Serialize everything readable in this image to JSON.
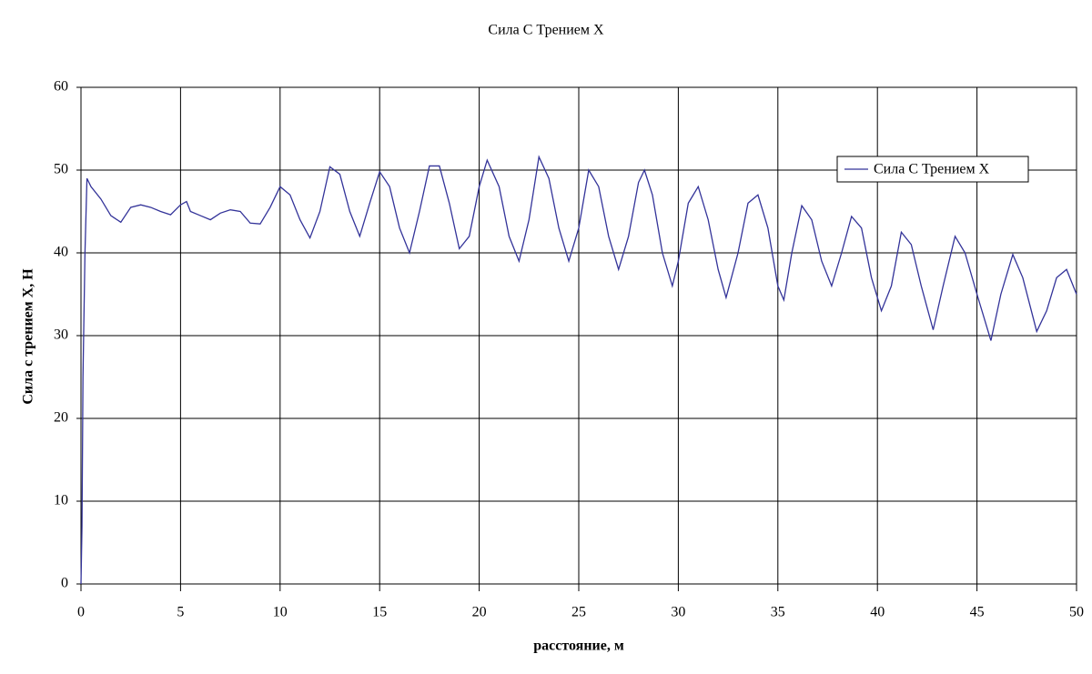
{
  "chart_data": {
    "type": "line",
    "title": "Сила С Трением X",
    "xlabel": "расстояние, м",
    "ylabel": "Сила с трением X, Н",
    "x": [
      0,
      0.05,
      0.1,
      0.2,
      0.3,
      0.5,
      1,
      1.5,
      2,
      2.5,
      3,
      3.5,
      4,
      4.5,
      5,
      5.3,
      5.5,
      6,
      6.5,
      7,
      7.5,
      8,
      8.5,
      9,
      9.5,
      10,
      10.5,
      11,
      11.5,
      12,
      12.5,
      13,
      13.5,
      14,
      14.5,
      15,
      15.5,
      16,
      16.5,
      17,
      17.5,
      18,
      18.5,
      19,
      19.5,
      20,
      20.4,
      21,
      21.5,
      22,
      22.5,
      23,
      23.5,
      24,
      24.5,
      25,
      25.5,
      26,
      26.5,
      27,
      27.5,
      28,
      28.3,
      28.7,
      29.2,
      29.7,
      30,
      30.5,
      31,
      31.5,
      32,
      32.4,
      33,
      33.5,
      34,
      34.5,
      35,
      35.3,
      35.7,
      36.2,
      36.7,
      37.2,
      37.7,
      38.2,
      38.7,
      39.2,
      39.7,
      40.2,
      40.7,
      41.2,
      41.7,
      42.2,
      42.8,
      43.3,
      43.9,
      44.4,
      45,
      45.7,
      46.2,
      46.8,
      47.3,
      48,
      48.5,
      49,
      49.5,
      50
    ],
    "series": [
      {
        "name": "Сила С Трением X",
        "color": "#333399",
        "values": [
          0,
          7,
          25,
          40,
          49,
          48,
          46.5,
          44.5,
          43.7,
          45.5,
          45.8,
          45.5,
          45,
          44.6,
          45.8,
          46.2,
          45,
          44.5,
          44,
          44.8,
          45.2,
          45,
          43.6,
          43.5,
          45.5,
          48,
          47,
          44,
          41.8,
          45,
          50.4,
          49.5,
          45,
          42,
          46,
          49.8,
          48,
          43,
          40,
          45,
          50.5,
          50.5,
          46,
          40.5,
          42,
          48,
          51.2,
          48,
          42,
          39,
          44,
          51.6,
          49,
          43,
          39,
          43,
          50,
          48,
          42,
          38,
          42,
          48.5,
          50,
          47,
          40,
          36,
          39,
          46,
          48,
          44,
          38,
          34.6,
          40,
          46,
          47,
          43,
          36,
          34.3,
          40,
          45.7,
          44,
          39,
          36,
          40,
          44.4,
          43,
          37,
          33,
          36,
          42.5,
          41,
          36,
          30.7,
          36,
          42,
          40,
          35,
          29.4,
          35,
          39.8,
          37,
          30.5,
          33,
          37,
          38,
          35
        ]
      }
    ],
    "xlim": [
      0,
      50
    ],
    "xticks": [
      0,
      5,
      10,
      15,
      20,
      25,
      30,
      35,
      40,
      45,
      50
    ],
    "ylim": [
      0,
      60
    ],
    "yticks": [
      0,
      10,
      20,
      30,
      40,
      50,
      60
    ],
    "grid": true,
    "legend": "upper right"
  }
}
